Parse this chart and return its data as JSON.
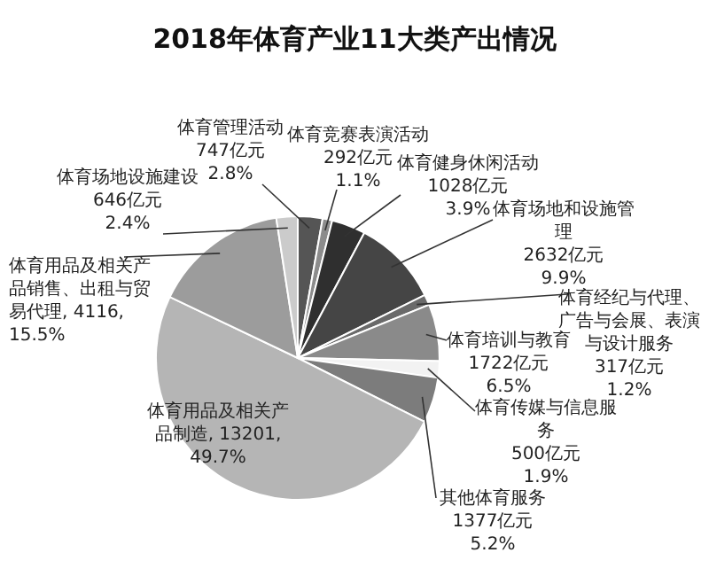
{
  "chart_data": {
    "type": "pie",
    "title": "2018年体育产业11大类产出情况",
    "categories": [
      "体育管理活动",
      "体育竞赛表演活动",
      "体育健身休闲活动",
      "体育场地和设施管理",
      "体育经纪与代理、广告与会展、表演与设计服务",
      "体育培训与教育",
      "体育传媒与信息服务",
      "其他体育服务",
      "体育用品及相关产品制造",
      "体育用品及相关产品销售、出租与贸易代理",
      "体育场地设施建设"
    ],
    "values": [
      747,
      292,
      1028,
      2632,
      317,
      1722,
      500,
      1377,
      13201,
      4116,
      646
    ],
    "value_labels": [
      "747亿元 2.8%",
      "292亿元 1.1%",
      "1028亿元 3.9%",
      "2632亿元 9.9%",
      "317亿元 1.2%",
      "1722亿元 6.5%",
      "500亿元 1.9%",
      "1377亿元 5.2%",
      "13201, 49.7%",
      "4116, 15.5%",
      "646亿元 2.4%"
    ],
    "colors": [
      "#555555",
      "#8c8c8c",
      "#2f2f2f",
      "#454545",
      "#6a6a6a",
      "#8a8a8a",
      "#f2f2f2",
      "#7c7c7c",
      "#b5b5b5",
      "#9c9c9c",
      "#cbcbcb"
    ]
  }
}
